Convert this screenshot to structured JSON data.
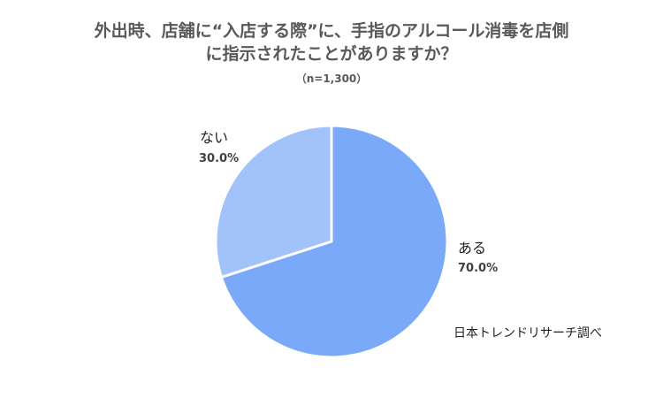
{
  "title_lines": [
    "外出時、店舗に“入店する際”に、手指のアルコール消毒を店側",
    "に指示されたことがありますか？"
  ],
  "subtitle": "（n=1,300）",
  "source": "日本トレンドリサーチ調べ",
  "chart_data": {
    "type": "pie",
    "title": "外出時、店舗に“入店する際”に、手指のアルコール消毒を店側に指示されたことがありますか？",
    "subtitle": "（n=1,300）",
    "slices": [
      {
        "label": "ある",
        "value": 70.0,
        "value_label": "70.0%",
        "color": "#79A9F8"
      },
      {
        "label": "ない",
        "value": 30.0,
        "value_label": "30.0%",
        "color": "#A2C3FA"
      }
    ],
    "start_angle": "12 o'clock, clockwise",
    "legend": "none (data labels beside slices)"
  }
}
